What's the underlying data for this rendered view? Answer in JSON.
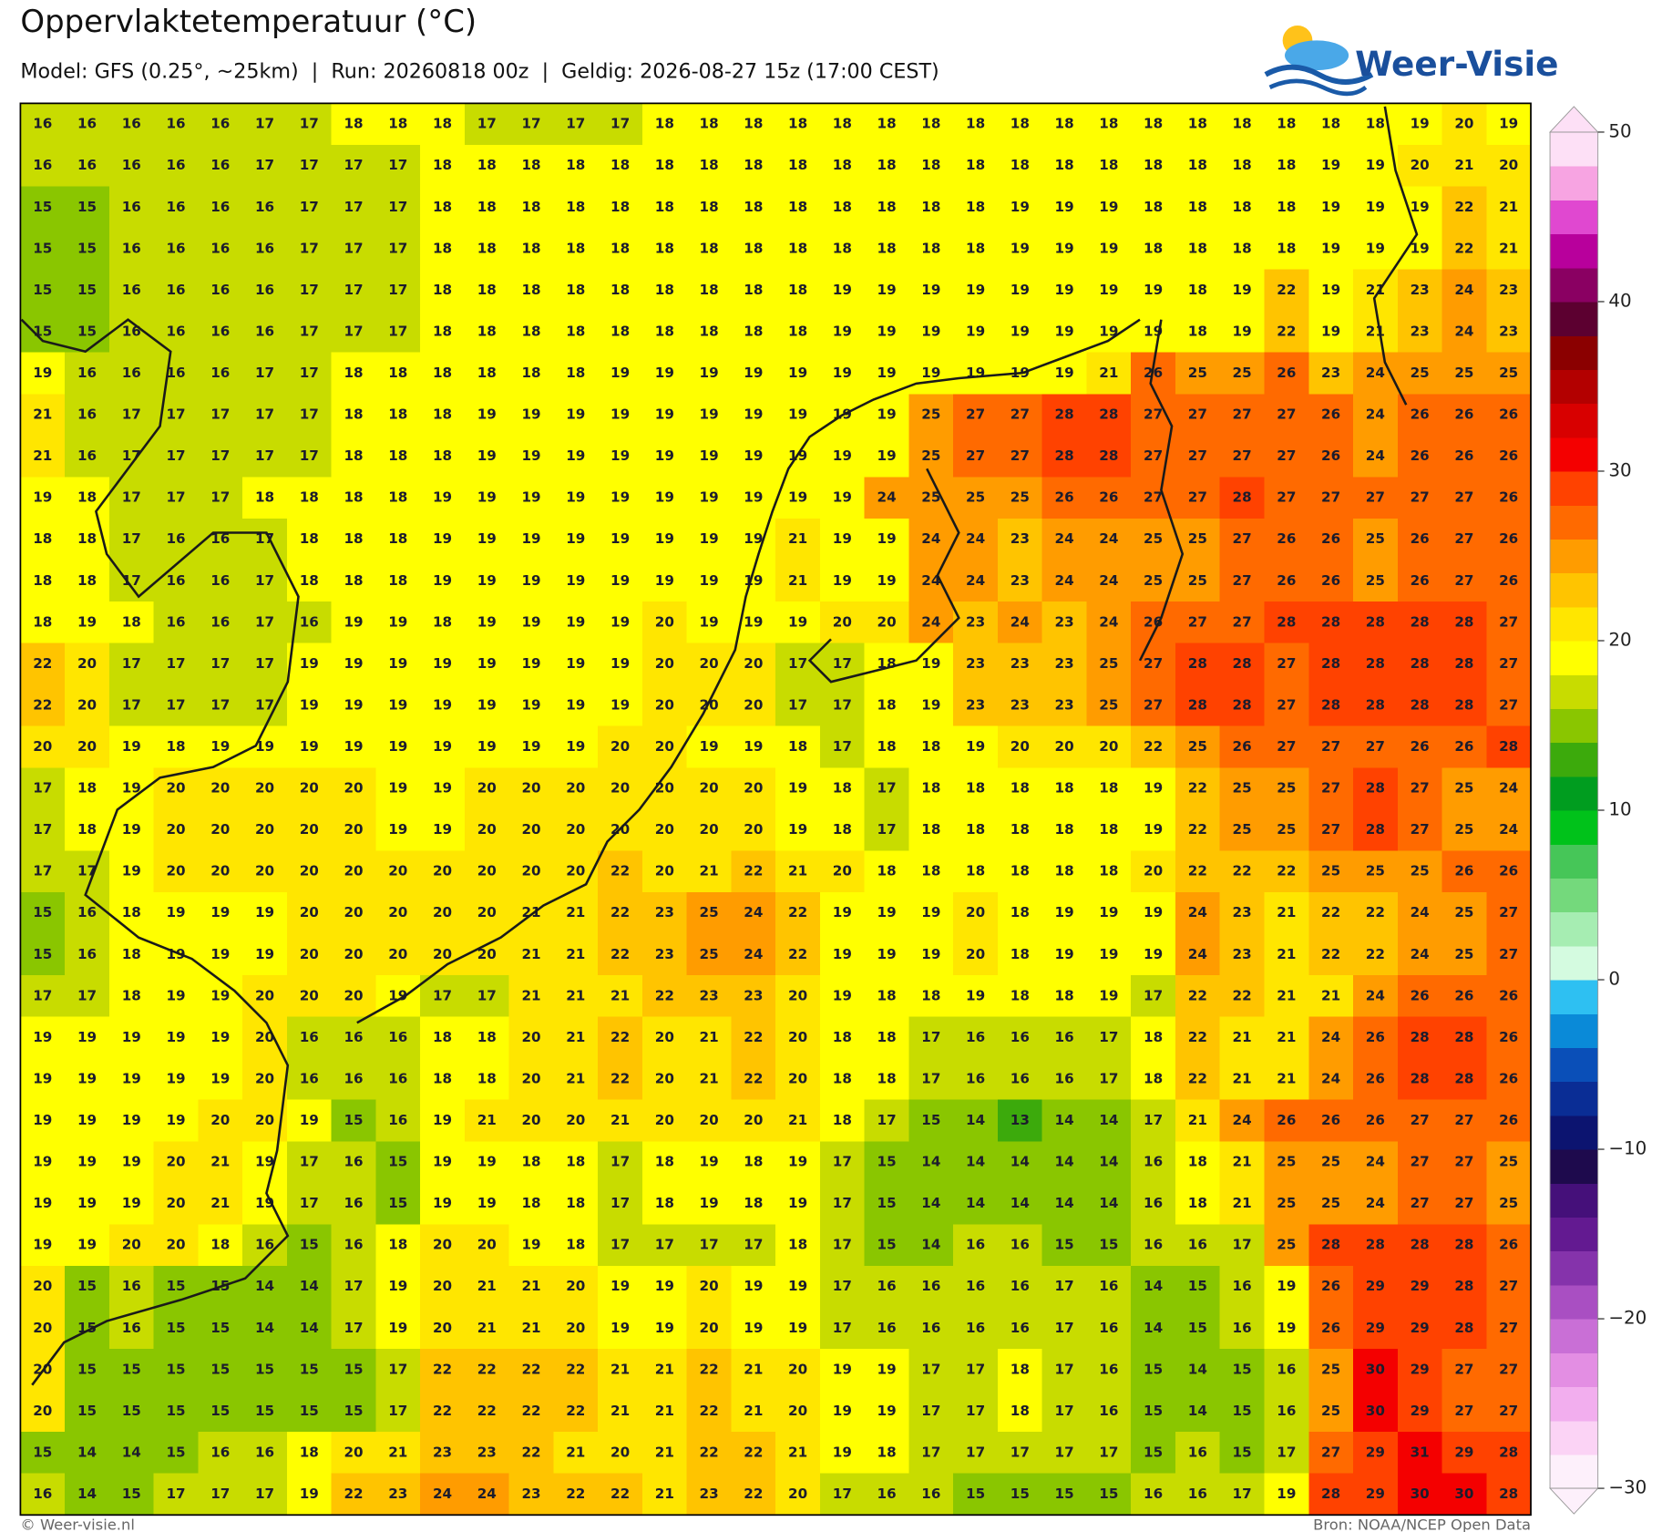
{
  "header": {
    "title": "Oppervlaktetemperatuur (°C)",
    "subtitle": "Model: GFS (0.25°, ~25km)  |  Run: 20260818 00z  |  Geldig: 2026-08-27 15z (17:00 CEST)",
    "logo": "Weer-Visie"
  },
  "grid": {
    "rows": [
      [
        16,
        16,
        16,
        16,
        16,
        17,
        17,
        18,
        18,
        18,
        17,
        17,
        17,
        17,
        18,
        18,
        18,
        18,
        18,
        18,
        18,
        18,
        18,
        18,
        18,
        18,
        18,
        18,
        18,
        18,
        18,
        19,
        20,
        19
      ],
      [
        16,
        16,
        16,
        16,
        16,
        17,
        17,
        17,
        17,
        18,
        18,
        18,
        18,
        18,
        18,
        18,
        18,
        18,
        18,
        18,
        18,
        18,
        18,
        18,
        18,
        18,
        18,
        18,
        18,
        19,
        19,
        20,
        21,
        20
      ],
      [
        15,
        15,
        16,
        16,
        16,
        16,
        17,
        17,
        17,
        18,
        18,
        18,
        18,
        18,
        18,
        18,
        18,
        18,
        18,
        18,
        18,
        18,
        19,
        19,
        19,
        18,
        18,
        18,
        18,
        19,
        19,
        19,
        22,
        21
      ],
      [
        15,
        15,
        16,
        16,
        16,
        16,
        17,
        17,
        17,
        18,
        18,
        18,
        18,
        18,
        18,
        18,
        18,
        18,
        18,
        18,
        18,
        18,
        19,
        19,
        19,
        18,
        18,
        18,
        18,
        19,
        19,
        19,
        22,
        21
      ],
      [
        15,
        15,
        16,
        16,
        16,
        16,
        17,
        17,
        17,
        18,
        18,
        18,
        18,
        18,
        18,
        18,
        18,
        18,
        19,
        19,
        19,
        19,
        19,
        19,
        19,
        19,
        18,
        19,
        22,
        19,
        21,
        23,
        24,
        23
      ],
      [
        15,
        15,
        16,
        16,
        16,
        16,
        17,
        17,
        17,
        18,
        18,
        18,
        18,
        18,
        18,
        18,
        18,
        18,
        19,
        19,
        19,
        19,
        19,
        19,
        19,
        19,
        18,
        19,
        22,
        19,
        21,
        23,
        24,
        23
      ],
      [
        19,
        16,
        16,
        16,
        16,
        17,
        17,
        18,
        18,
        18,
        18,
        18,
        18,
        19,
        19,
        19,
        19,
        19,
        19,
        19,
        19,
        19,
        19,
        19,
        21,
        26,
        25,
        25,
        26,
        23,
        24,
        25,
        25,
        25
      ],
      [
        21,
        16,
        17,
        17,
        17,
        17,
        17,
        18,
        18,
        18,
        19,
        19,
        19,
        19,
        19,
        19,
        19,
        19,
        19,
        19,
        25,
        27,
        27,
        28,
        28,
        27,
        27,
        27,
        27,
        26,
        24,
        26,
        26,
        26
      ],
      [
        21,
        16,
        17,
        17,
        17,
        17,
        17,
        18,
        18,
        18,
        19,
        19,
        19,
        19,
        19,
        19,
        19,
        19,
        19,
        19,
        25,
        27,
        27,
        28,
        28,
        27,
        27,
        27,
        27,
        26,
        24,
        26,
        26,
        26
      ],
      [
        19,
        18,
        17,
        17,
        17,
        18,
        18,
        18,
        18,
        19,
        19,
        19,
        19,
        19,
        19,
        19,
        19,
        19,
        19,
        24,
        25,
        25,
        25,
        26,
        26,
        27,
        27,
        28,
        27,
        27,
        27,
        27,
        27,
        26
      ],
      [
        18,
        18,
        17,
        16,
        16,
        17,
        18,
        18,
        18,
        19,
        19,
        19,
        19,
        19,
        19,
        19,
        19,
        21,
        19,
        19,
        24,
        24,
        23,
        24,
        24,
        25,
        25,
        27,
        26,
        26,
        25,
        26,
        27,
        26
      ],
      [
        18,
        18,
        17,
        16,
        16,
        17,
        18,
        18,
        18,
        19,
        19,
        19,
        19,
        19,
        19,
        19,
        19,
        21,
        19,
        19,
        24,
        24,
        23,
        24,
        24,
        25,
        25,
        27,
        26,
        26,
        25,
        26,
        27,
        26
      ],
      [
        18,
        19,
        18,
        16,
        16,
        17,
        16,
        19,
        19,
        18,
        19,
        19,
        19,
        19,
        20,
        19,
        19,
        19,
        20,
        20,
        24,
        23,
        24,
        23,
        24,
        26,
        27,
        27,
        28,
        28,
        28,
        28,
        28,
        27
      ],
      [
        22,
        20,
        17,
        17,
        17,
        17,
        19,
        19,
        19,
        19,
        19,
        19,
        19,
        19,
        20,
        20,
        20,
        17,
        17,
        18,
        19,
        23,
        23,
        23,
        25,
        27,
        28,
        28,
        27,
        28,
        28,
        28,
        28,
        27
      ],
      [
        22,
        20,
        17,
        17,
        17,
        17,
        19,
        19,
        19,
        19,
        19,
        19,
        19,
        19,
        20,
        20,
        20,
        17,
        17,
        18,
        19,
        23,
        23,
        23,
        25,
        27,
        28,
        28,
        27,
        28,
        28,
        28,
        28,
        27
      ],
      [
        20,
        20,
        19,
        18,
        19,
        19,
        19,
        19,
        19,
        19,
        19,
        19,
        19,
        20,
        20,
        19,
        19,
        18,
        17,
        18,
        18,
        19,
        20,
        20,
        20,
        22,
        25,
        26,
        27,
        27,
        27,
        26,
        26,
        28
      ],
      [
        17,
        18,
        19,
        20,
        20,
        20,
        20,
        20,
        19,
        19,
        20,
        20,
        20,
        20,
        20,
        20,
        20,
        19,
        18,
        17,
        18,
        18,
        18,
        18,
        18,
        19,
        22,
        25,
        25,
        27,
        28,
        27,
        25,
        24
      ],
      [
        17,
        18,
        19,
        20,
        20,
        20,
        20,
        20,
        19,
        19,
        20,
        20,
        20,
        20,
        20,
        20,
        20,
        19,
        18,
        17,
        18,
        18,
        18,
        18,
        18,
        19,
        22,
        25,
        25,
        27,
        28,
        27,
        25,
        24
      ],
      [
        17,
        17,
        19,
        20,
        20,
        20,
        20,
        20,
        20,
        20,
        20,
        20,
        20,
        22,
        20,
        21,
        22,
        21,
        20,
        18,
        18,
        18,
        18,
        18,
        18,
        20,
        22,
        22,
        22,
        25,
        25,
        25,
        26,
        26
      ],
      [
        15,
        16,
        18,
        19,
        19,
        19,
        20,
        20,
        20,
        20,
        20,
        21,
        21,
        22,
        23,
        25,
        24,
        22,
        19,
        19,
        19,
        20,
        18,
        19,
        19,
        19,
        24,
        23,
        21,
        22,
        22,
        24,
        25,
        27
      ],
      [
        15,
        16,
        18,
        19,
        19,
        19,
        20,
        20,
        20,
        20,
        20,
        21,
        21,
        22,
        23,
        25,
        24,
        22,
        19,
        19,
        19,
        20,
        18,
        19,
        19,
        19,
        24,
        23,
        21,
        22,
        22,
        24,
        25,
        27
      ],
      [
        17,
        17,
        18,
        19,
        19,
        20,
        20,
        20,
        19,
        17,
        17,
        21,
        21,
        21,
        22,
        23,
        23,
        20,
        19,
        18,
        18,
        19,
        18,
        18,
        19,
        17,
        22,
        22,
        21,
        21,
        24,
        26,
        26,
        26
      ],
      [
        19,
        19,
        19,
        19,
        19,
        20,
        16,
        16,
        16,
        18,
        18,
        20,
        21,
        22,
        20,
        21,
        22,
        20,
        18,
        18,
        17,
        16,
        16,
        16,
        17,
        18,
        22,
        21,
        21,
        24,
        26,
        28,
        28,
        26
      ],
      [
        19,
        19,
        19,
        19,
        19,
        20,
        16,
        16,
        16,
        18,
        18,
        20,
        21,
        22,
        20,
        21,
        22,
        20,
        18,
        18,
        17,
        16,
        16,
        16,
        17,
        18,
        22,
        21,
        21,
        24,
        26,
        28,
        28,
        26
      ],
      [
        19,
        19,
        19,
        19,
        20,
        20,
        19,
        15,
        16,
        19,
        21,
        20,
        20,
        21,
        20,
        20,
        20,
        21,
        18,
        17,
        15,
        14,
        13,
        14,
        14,
        17,
        21,
        24,
        26,
        26,
        26,
        27,
        27,
        26
      ],
      [
        19,
        19,
        19,
        20,
        21,
        19,
        17,
        16,
        15,
        19,
        19,
        18,
        18,
        17,
        18,
        19,
        18,
        19,
        17,
        15,
        14,
        14,
        14,
        14,
        14,
        16,
        18,
        21,
        25,
        25,
        24,
        27,
        27,
        25
      ],
      [
        19,
        19,
        19,
        20,
        21,
        19,
        17,
        16,
        15,
        19,
        19,
        18,
        18,
        17,
        18,
        19,
        18,
        19,
        17,
        15,
        14,
        14,
        14,
        14,
        14,
        16,
        18,
        21,
        25,
        25,
        24,
        27,
        27,
        25
      ],
      [
        19,
        19,
        20,
        20,
        18,
        16,
        15,
        16,
        18,
        20,
        20,
        19,
        18,
        17,
        17,
        17,
        17,
        18,
        17,
        15,
        14,
        16,
        16,
        15,
        15,
        16,
        16,
        17,
        25,
        28,
        28,
        28,
        28,
        26
      ],
      [
        20,
        15,
        16,
        15,
        15,
        14,
        14,
        17,
        19,
        20,
        21,
        21,
        20,
        19,
        19,
        20,
        19,
        19,
        17,
        16,
        16,
        16,
        16,
        17,
        16,
        14,
        15,
        16,
        19,
        26,
        29,
        29,
        28,
        27
      ],
      [
        20,
        15,
        16,
        15,
        15,
        14,
        14,
        17,
        19,
        20,
        21,
        21,
        20,
        19,
        19,
        20,
        19,
        19,
        17,
        16,
        16,
        16,
        16,
        17,
        16,
        14,
        15,
        16,
        19,
        26,
        29,
        29,
        28,
        27
      ],
      [
        20,
        15,
        15,
        15,
        15,
        15,
        15,
        15,
        17,
        22,
        22,
        22,
        22,
        21,
        21,
        22,
        21,
        20,
        19,
        19,
        17,
        17,
        18,
        17,
        16,
        15,
        14,
        15,
        16,
        25,
        30,
        29,
        27,
        27
      ],
      [
        20,
        15,
        15,
        15,
        15,
        15,
        15,
        15,
        17,
        22,
        22,
        22,
        22,
        21,
        21,
        22,
        21,
        20,
        19,
        19,
        17,
        17,
        18,
        17,
        16,
        15,
        14,
        15,
        16,
        25,
        30,
        29,
        27,
        27
      ],
      [
        15,
        14,
        14,
        15,
        16,
        16,
        18,
        20,
        21,
        23,
        23,
        22,
        21,
        20,
        21,
        22,
        22,
        21,
        19,
        18,
        17,
        17,
        17,
        17,
        17,
        15,
        16,
        15,
        17,
        27,
        29,
        31,
        29,
        28
      ],
      [
        16,
        14,
        15,
        17,
        17,
        17,
        19,
        22,
        23,
        24,
        24,
        23,
        22,
        22,
        21,
        23,
        22,
        20,
        17,
        16,
        16,
        15,
        15,
        15,
        15,
        16,
        16,
        17,
        19,
        28,
        29,
        30,
        30,
        28
      ]
    ]
  },
  "colorbar": {
    "ticks": [
      50,
      40,
      30,
      20,
      10,
      0,
      {
        "value": -10,
        "label": "−10"
      },
      {
        "value": -20,
        "label": "−20"
      },
      {
        "value": -30,
        "label": "−30"
      }
    ],
    "colors": [
      "#fdf0fb",
      "#fbd3f5",
      "#f2aeee",
      "#e38ee3",
      "#c96fd6",
      "#a94fc2",
      "#8533ab",
      "#631a91",
      "#45107a",
      "#1e0a4d",
      "#0c1470",
      "#0a2d95",
      "#0a4fb8",
      "#0a8ad8",
      "#2ec0f2",
      "#d4fbe0",
      "#a6edb2",
      "#74d97c",
      "#46c658",
      "#00c21a",
      "#009d1f",
      "#3caa0c",
      "#8ac600",
      "#c8dc00",
      "#ffff00",
      "#ffe600",
      "#ffc400",
      "#ff9c00",
      "#ff6a00",
      "#ff4200",
      "#f40000",
      "#d80000",
      "#b30000",
      "#8b0000",
      "#5c0030",
      "#8a0062",
      "#b8009c",
      "#e048d0",
      "#f7a4e2",
      "#fde0f6"
    ]
  },
  "footer": {
    "credit": "© Weer-visie.nl",
    "source": "Bron: NOAA/NCEP Open Data"
  }
}
